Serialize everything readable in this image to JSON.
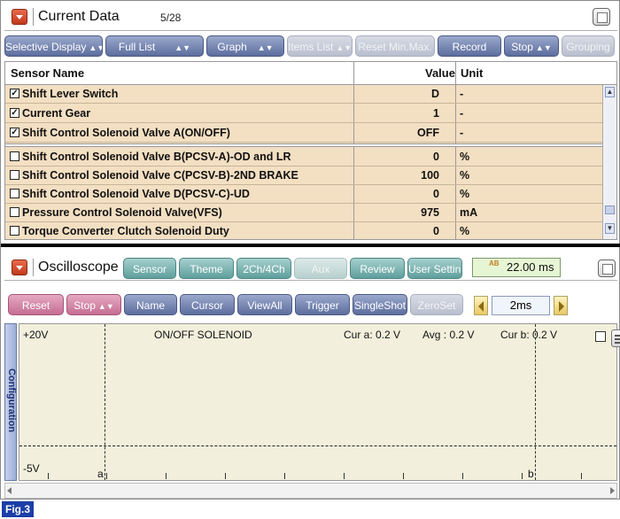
{
  "current_data": {
    "title": "Current Data",
    "count": "5/28",
    "icon": "collapse-icon",
    "toolbar": [
      {
        "label": "Selective Display",
        "arrows": true,
        "enabled": true
      },
      {
        "label": "Full List",
        "arrows": true,
        "enabled": true
      },
      {
        "label": "Graph",
        "arrows": true,
        "enabled": true
      },
      {
        "label": "Items List",
        "arrows": true,
        "enabled": false
      },
      {
        "label": "Reset Min.Max.",
        "arrows": false,
        "enabled": false
      },
      {
        "label": "Record",
        "arrows": false,
        "enabled": true
      },
      {
        "label": "Stop",
        "arrows": true,
        "enabled": true
      },
      {
        "label": "Grouping",
        "arrows": false,
        "enabled": false
      }
    ],
    "columns": {
      "name": "Sensor Name",
      "value": "Value",
      "unit": "Unit"
    },
    "checked_rows": [
      {
        "name": "Shift Lever Switch",
        "value": "D",
        "unit": "-",
        "checked": true
      },
      {
        "name": "Current Gear",
        "value": "1",
        "unit": "-",
        "checked": true
      },
      {
        "name": "Shift Control Solenoid Valve A(ON/OFF)",
        "value": "OFF",
        "unit": "-",
        "checked": true
      }
    ],
    "rows": [
      {
        "name": "Shift Control Solenoid Valve B(PCSV-A)-OD and LR",
        "value": "0",
        "unit": "%",
        "checked": false
      },
      {
        "name": "Shift Control Solenoid Valve C(PCSV-B)-2ND BRAKE",
        "value": "100",
        "unit": "%",
        "checked": false
      },
      {
        "name": "Shift Control Solenoid Valve D(PCSV-C)-UD",
        "value": "0",
        "unit": "%",
        "checked": false
      },
      {
        "name": "Pressure Control Solenoid Valve(VFS)",
        "value": "975",
        "unit": "mA",
        "checked": false
      },
      {
        "name": "Torque Converter Clutch Solenoid Duty",
        "value": "0",
        "unit": "%",
        "checked": false
      }
    ]
  },
  "oscilloscope": {
    "title": "Oscilloscope",
    "tabs": [
      {
        "label": "Sensor",
        "enabled": true
      },
      {
        "label": "Theme",
        "enabled": true
      },
      {
        "label": "2Ch/4Ch",
        "enabled": true
      },
      {
        "label": "Aux",
        "enabled": false
      },
      {
        "label": "Review",
        "enabled": true
      },
      {
        "label": "User Setting",
        "enabled": true
      }
    ],
    "time_value": "22.00 ms",
    "time_icon_text": "AB",
    "controls": [
      {
        "label": "Reset",
        "arrows": false,
        "style": "pink",
        "enabled": true
      },
      {
        "label": "Stop",
        "arrows": true,
        "style": "pink",
        "enabled": true
      },
      {
        "label": "Name",
        "arrows": false,
        "style": "blue",
        "enabled": true
      },
      {
        "label": "Cursor",
        "arrows": false,
        "style": "blue",
        "enabled": true
      },
      {
        "label": "ViewAll",
        "arrows": false,
        "style": "blue",
        "enabled": true
      },
      {
        "label": "Trigger",
        "arrows": false,
        "style": "blue",
        "enabled": true
      },
      {
        "label": "SingleShot",
        "arrows": false,
        "style": "blue",
        "enabled": true
      },
      {
        "label": "ZeroSet",
        "arrows": false,
        "style": "blue",
        "enabled": false
      }
    ],
    "time_div": "2ms",
    "config_tab": "Configuration",
    "plot": {
      "y_max": "+20V",
      "y_min": "-5V",
      "channel": "ON/OFF SOLENOID",
      "cur_a": "Cur a: 0.2 V",
      "avg": "Avg  : 0.2 V",
      "cur_b": "Cur b: 0.2 V",
      "cursor_a": "a",
      "cursor_b": "b"
    }
  },
  "figure_label": "Fig.3",
  "colors": {
    "blue_button": "#5d6e9e",
    "teal_button": "#5e9f9c",
    "pink_button": "#c56d92",
    "row_bg": "#f3dfc2",
    "plot_bg": "#f2f0dc",
    "fig_label_bg": "#1b3ea8"
  }
}
